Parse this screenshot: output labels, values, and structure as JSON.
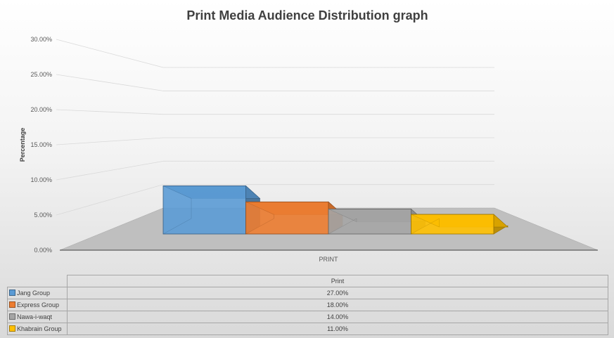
{
  "chart_data": {
    "type": "bar",
    "title": "Print Media Audience Distribution graph",
    "ylabel": "Percentage",
    "xlabel": "",
    "categories": [
      "PRINT"
    ],
    "ylim": [
      0,
      0.3
    ],
    "y_ticks": [
      "0.00%",
      "5.00%",
      "10.00%",
      "15.00%",
      "20.00%",
      "25.00%",
      "30.00%"
    ],
    "grid": true,
    "style": "3d-column",
    "series": [
      {
        "name": "Jang Group",
        "values": [
          0.27
        ],
        "label": "27.00%",
        "color": "#5B9BD5"
      },
      {
        "name": "Express Group",
        "values": [
          0.18
        ],
        "label": "18.00%",
        "color": "#ED7D31"
      },
      {
        "name": "Nawa-i-waqt",
        "values": [
          0.14
        ],
        "label": "14.00%",
        "color": "#A5A5A5"
      },
      {
        "name": "Khabrain Group",
        "values": [
          0.11
        ],
        "label": "11.00%",
        "color": "#FFC000"
      }
    ],
    "table_header": "Print"
  }
}
